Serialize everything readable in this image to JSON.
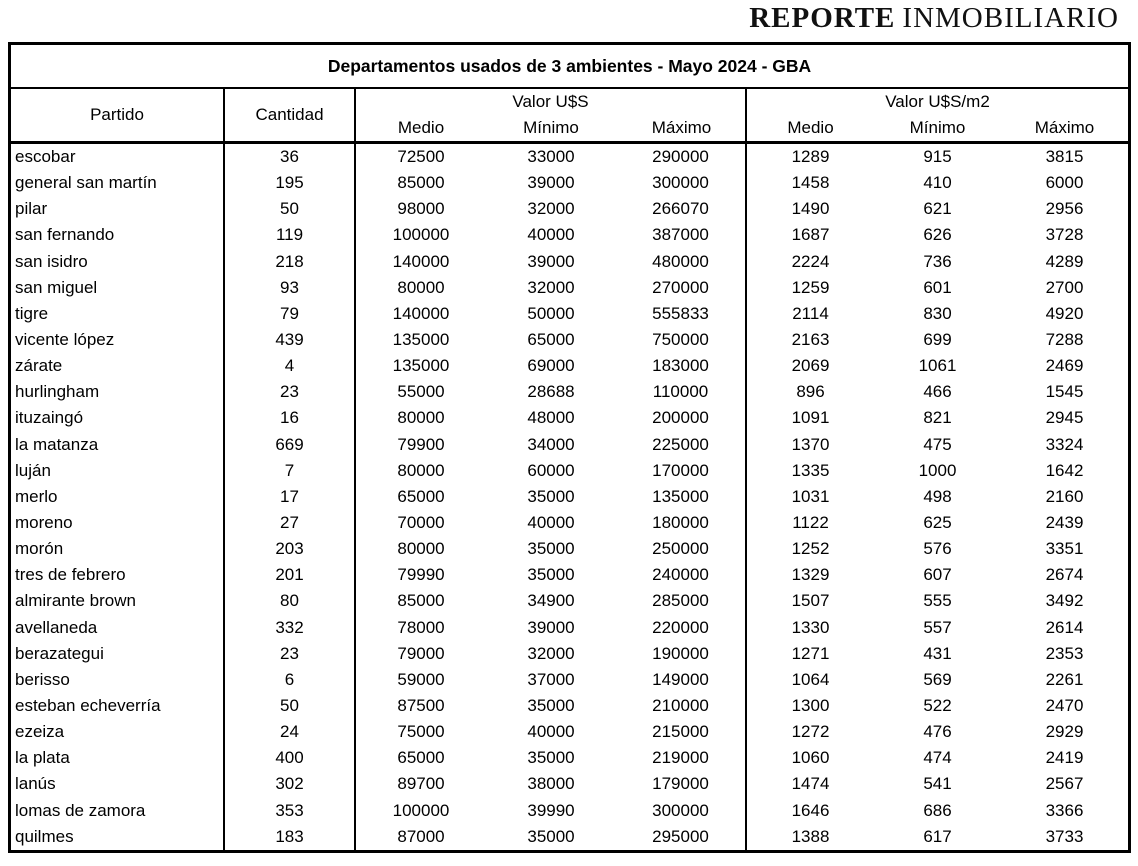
{
  "logo": {
    "bold": "REPORTE",
    "regular": "INMOBILIARIO"
  },
  "table": {
    "title": "Departamentos usados de 3 ambientes - Mayo 2024 - GBA",
    "header": {
      "partido": "Partido",
      "cantidad": "Cantidad",
      "group_usd": "Valor U$S",
      "group_usd_m2": "Valor U$S/m2",
      "sub_medio": "Medio",
      "sub_minimo": "Mínimo",
      "sub_maximo": "Máximo"
    },
    "rows": [
      [
        "escobar",
        "36",
        "72500",
        "33000",
        "290000",
        "1289",
        "915",
        "3815"
      ],
      [
        "general san martín",
        "195",
        "85000",
        "39000",
        "300000",
        "1458",
        "410",
        "6000"
      ],
      [
        "pilar",
        "50",
        "98000",
        "32000",
        "266070",
        "1490",
        "621",
        "2956"
      ],
      [
        "san fernando",
        "119",
        "100000",
        "40000",
        "387000",
        "1687",
        "626",
        "3728"
      ],
      [
        "san isidro",
        "218",
        "140000",
        "39000",
        "480000",
        "2224",
        "736",
        "4289"
      ],
      [
        "san miguel",
        "93",
        "80000",
        "32000",
        "270000",
        "1259",
        "601",
        "2700"
      ],
      [
        "tigre",
        "79",
        "140000",
        "50000",
        "555833",
        "2114",
        "830",
        "4920"
      ],
      [
        "vicente lópez",
        "439",
        "135000",
        "65000",
        "750000",
        "2163",
        "699",
        "7288"
      ],
      [
        "zárate",
        "4",
        "135000",
        "69000",
        "183000",
        "2069",
        "1061",
        "2469"
      ],
      [
        "hurlingham",
        "23",
        "55000",
        "28688",
        "110000",
        "896",
        "466",
        "1545"
      ],
      [
        "ituzaingó",
        "16",
        "80000",
        "48000",
        "200000",
        "1091",
        "821",
        "2945"
      ],
      [
        "la matanza",
        "669",
        "79900",
        "34000",
        "225000",
        "1370",
        "475",
        "3324"
      ],
      [
        "luján",
        "7",
        "80000",
        "60000",
        "170000",
        "1335",
        "1000",
        "1642"
      ],
      [
        "merlo",
        "17",
        "65000",
        "35000",
        "135000",
        "1031",
        "498",
        "2160"
      ],
      [
        "moreno",
        "27",
        "70000",
        "40000",
        "180000",
        "1122",
        "625",
        "2439"
      ],
      [
        "morón",
        "203",
        "80000",
        "35000",
        "250000",
        "1252",
        "576",
        "3351"
      ],
      [
        "tres de febrero",
        "201",
        "79990",
        "35000",
        "240000",
        "1329",
        "607",
        "2674"
      ],
      [
        "almirante brown",
        "80",
        "85000",
        "34900",
        "285000",
        "1507",
        "555",
        "3492"
      ],
      [
        "avellaneda",
        "332",
        "78000",
        "39000",
        "220000",
        "1330",
        "557",
        "2614"
      ],
      [
        "berazategui",
        "23",
        "79000",
        "32000",
        "190000",
        "1271",
        "431",
        "2353"
      ],
      [
        "berisso",
        "6",
        "59000",
        "37000",
        "149000",
        "1064",
        "569",
        "2261"
      ],
      [
        "esteban echeverría",
        "50",
        "87500",
        "35000",
        "210000",
        "1300",
        "522",
        "2470"
      ],
      [
        "ezeiza",
        "24",
        "75000",
        "40000",
        "215000",
        "1272",
        "476",
        "2929"
      ],
      [
        "la plata",
        "400",
        "65000",
        "35000",
        "219000",
        "1060",
        "474",
        "2419"
      ],
      [
        "lanús",
        "302",
        "89700",
        "38000",
        "179000",
        "1474",
        "541",
        "2567"
      ],
      [
        "lomas de zamora",
        "353",
        "100000",
        "39990",
        "300000",
        "1646",
        "686",
        "3366"
      ],
      [
        "quilmes",
        "183",
        "87000",
        "35000",
        "295000",
        "1388",
        "617",
        "3733"
      ]
    ]
  },
  "colors": {
    "border": "#000000",
    "text": "#000000",
    "background": "#ffffff"
  }
}
